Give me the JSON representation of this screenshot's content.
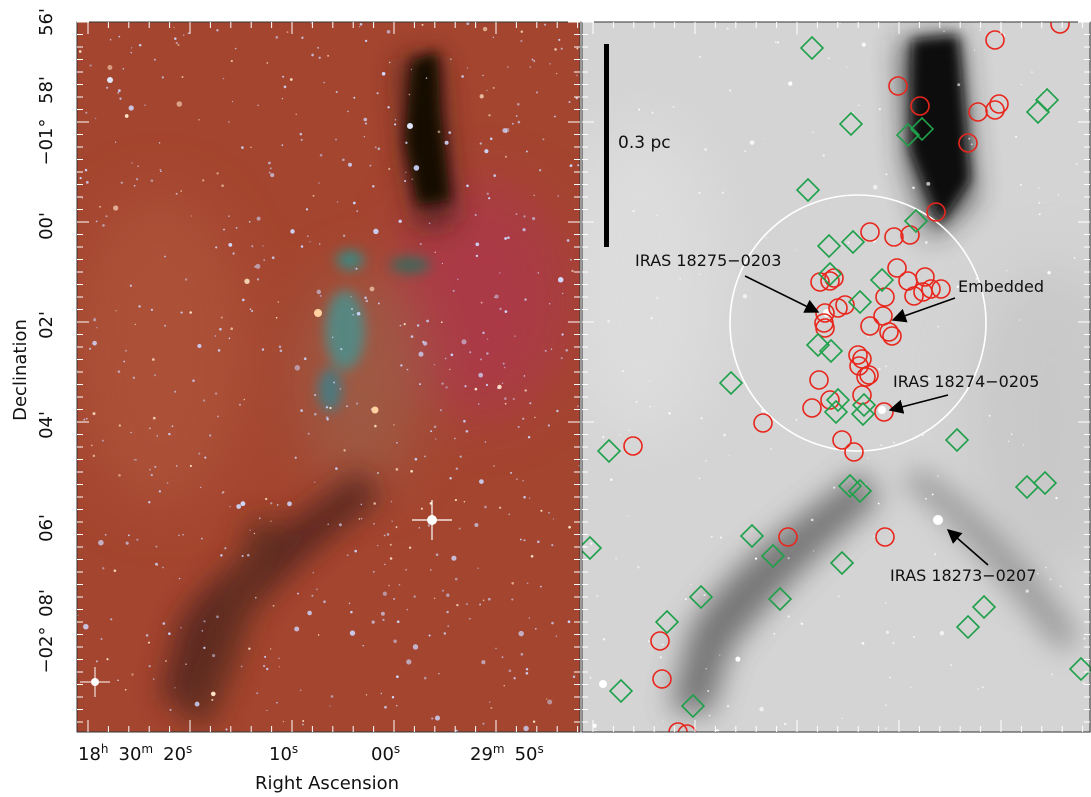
{
  "y_axis": {
    "title": "Declination",
    "ticks": [
      {
        "deg": "",
        "min": "56'"
      },
      {
        "deg": "",
        "min": "58'"
      },
      {
        "deg": "−01°",
        "min": ""
      },
      {
        "deg": "",
        "min": "00'"
      },
      {
        "deg": "",
        "min": "02'"
      },
      {
        "deg": "",
        "min": "04'"
      },
      {
        "deg": "",
        "min": "06'"
      },
      {
        "deg": "",
        "min": "08'"
      },
      {
        "deg": "−02°",
        "min": ""
      }
    ]
  },
  "x_axis": {
    "title": "Right Ascension",
    "ticks": [
      {
        "h": "18",
        "hsup": "h",
        "m": "30",
        "msup": "m",
        "s": "20",
        "ssup": "s"
      },
      {
        "s": "10",
        "ssup": "s"
      },
      {
        "s": "00",
        "ssup": "s"
      },
      {
        "m": "29",
        "msup": "m",
        "s": "50",
        "ssup": "s"
      }
    ]
  },
  "left_panel": {
    "colors": {
      "background": "#a4452f",
      "dark_lane": "#40261c",
      "cloud": "#2f8f8a"
    }
  },
  "right_panel": {
    "colors": {
      "background": "#d4d4d4",
      "dark_lane": "#111111",
      "circle_marker": "#e8261c",
      "diamond_marker": "#1fa04a"
    },
    "scale_bar": {
      "label": "0.3 pc"
    },
    "annotations": [
      {
        "text": "IRAS 18275−0203"
      },
      {
        "text": "Embedded"
      },
      {
        "text": "IRAS 18274−0205"
      },
      {
        "text": "IRAS 18273−0207"
      }
    ]
  }
}
